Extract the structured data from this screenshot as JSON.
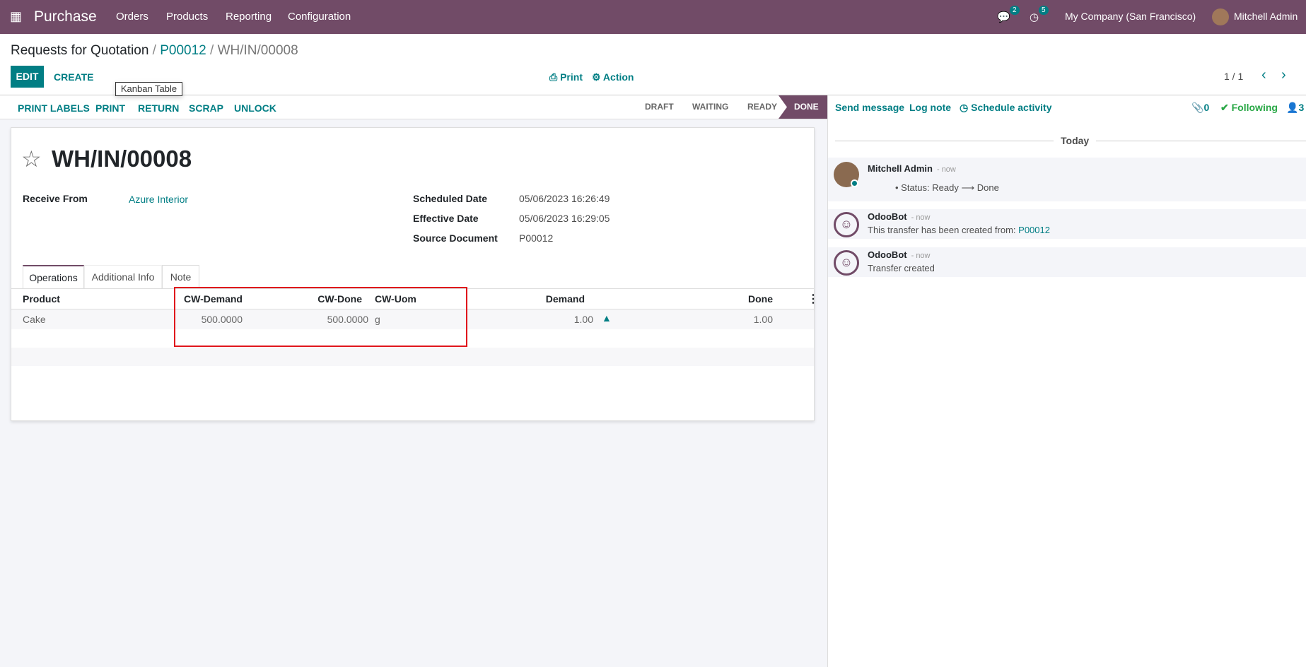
{
  "navbar": {
    "app": "Purchase",
    "menu": [
      "Orders",
      "Products",
      "Reporting",
      "Configuration"
    ],
    "messages_count": "2",
    "activities_count": "5",
    "company": "My Company (San Francisco)",
    "user": "Mitchell Admin",
    "color": "#714b67"
  },
  "breadcrumb": {
    "root": "Requests for Quotation",
    "sep": "/",
    "parent": "P00012",
    "current": "WH/IN/00008"
  },
  "control": {
    "edit": "EDIT",
    "create": "CREATE",
    "print": "Print",
    "action": "Action",
    "pager": "1 / 1"
  },
  "tooltip": "Kanban Table",
  "statusbar": {
    "buttons": [
      "PRINT LABELS",
      "PRINT",
      "RETURN",
      "SCRAP",
      "UNLOCK"
    ],
    "stages": [
      "DRAFT",
      "WAITING",
      "READY",
      "DONE"
    ],
    "active_stage": "DONE"
  },
  "record": {
    "title": "WH/IN/00008",
    "fields": {
      "receive_from_label": "Receive From",
      "receive_from": "Azure Interior",
      "scheduled_label": "Scheduled Date",
      "scheduled": "05/06/2023 16:26:49",
      "effective_label": "Effective Date",
      "effective": "05/06/2023 16:29:05",
      "source_label": "Source Document",
      "source": "P00012"
    },
    "tabs": [
      "Operations",
      "Additional Info",
      "Note"
    ],
    "table": {
      "headers": [
        "Product",
        "CW-Demand",
        "CW-Done",
        "CW-Uom",
        "Demand",
        "Done"
      ],
      "rows": [
        {
          "product": "Cake",
          "cw_demand": "500.0000",
          "cw_done": "500.0000",
          "cw_uom": "g",
          "demand": "1.00",
          "done": "1.00"
        }
      ]
    }
  },
  "chatter": {
    "send": "Send message",
    "log": "Log note",
    "schedule": "Schedule activity",
    "attachments": "0",
    "following": "Following",
    "followers": "3",
    "today": "Today",
    "messages": [
      {
        "author": "Mitchell Admin",
        "time": "- now",
        "bullet": "Status: Ready",
        "arrow": "⟶",
        "to": "Done"
      },
      {
        "author": "OdooBot",
        "time": "- now",
        "text": "This transfer has been created from: ",
        "link": "P00012"
      },
      {
        "author": "OdooBot",
        "time": "- now",
        "text": "Transfer created"
      }
    ]
  }
}
